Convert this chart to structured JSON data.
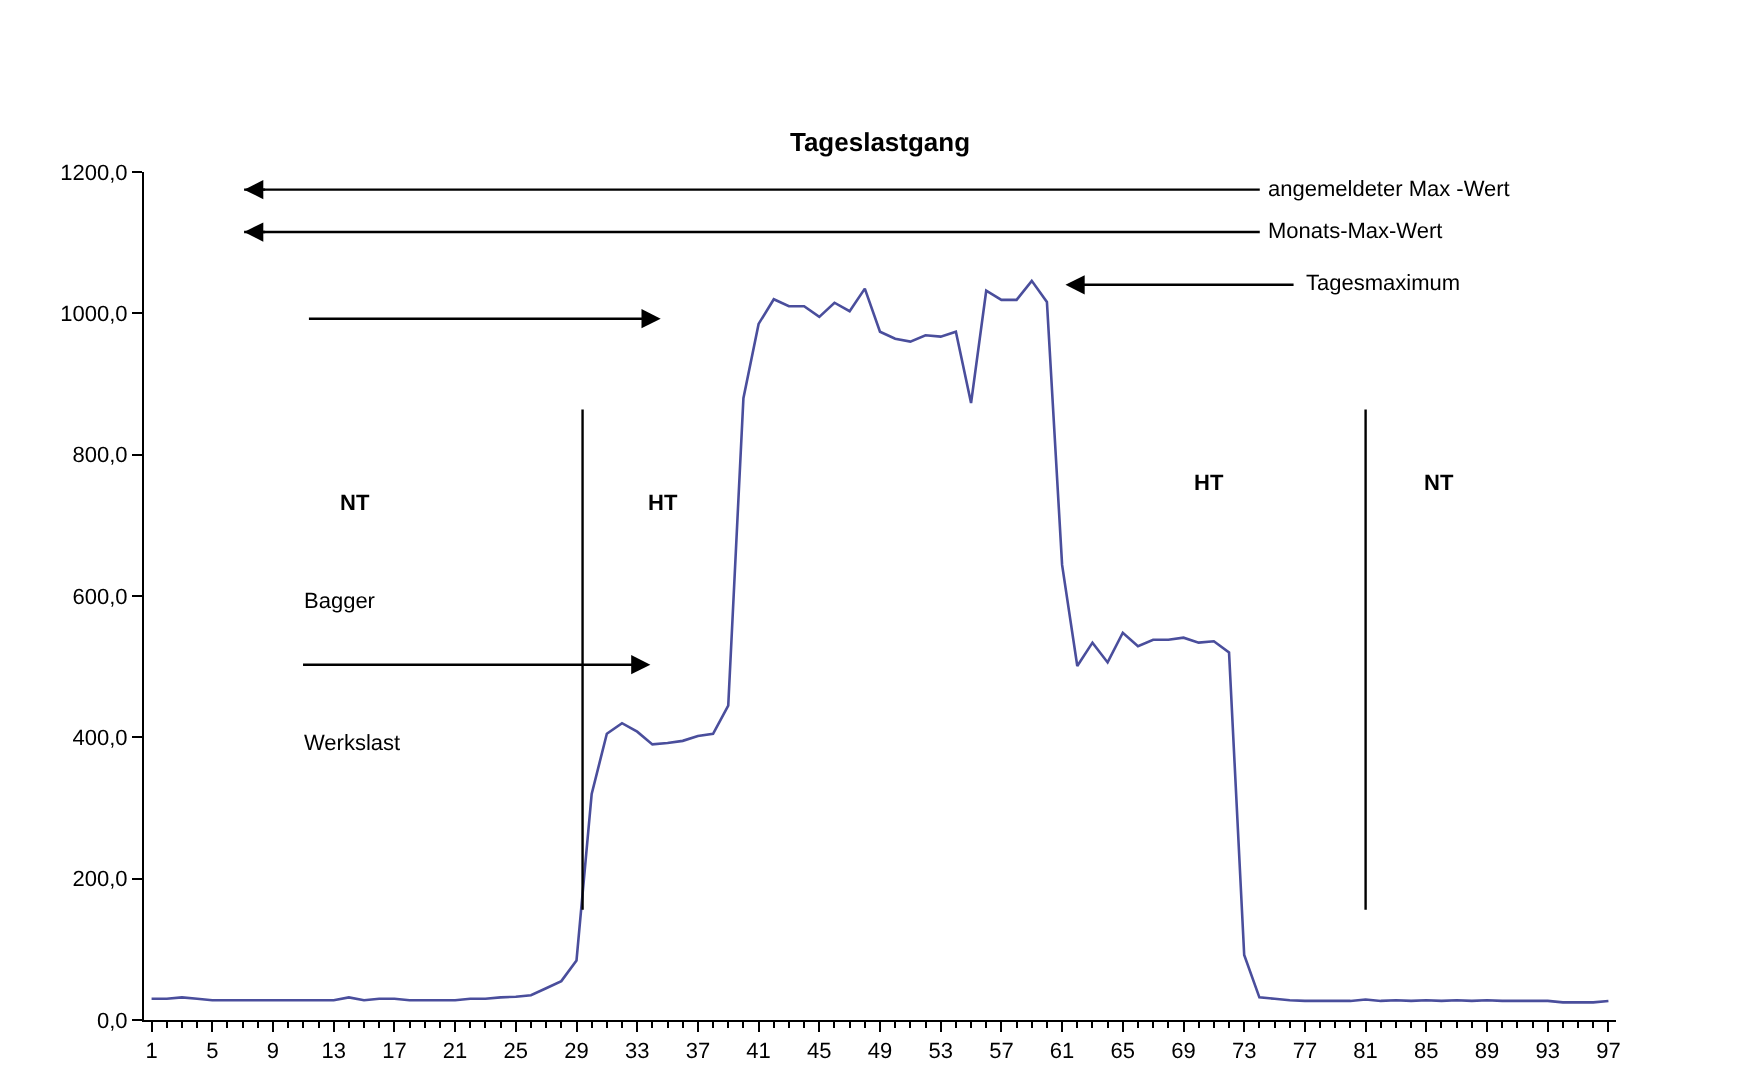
{
  "chart_data": {
    "type": "line",
    "title": "Tageslastgang",
    "x": [
      1,
      2,
      3,
      4,
      5,
      6,
      7,
      8,
      9,
      10,
      11,
      12,
      13,
      14,
      15,
      16,
      17,
      18,
      19,
      20,
      21,
      22,
      23,
      24,
      25,
      26,
      27,
      28,
      29,
      30,
      31,
      32,
      33,
      34,
      35,
      36,
      37,
      38,
      39,
      40,
      41,
      42,
      43,
      44,
      45,
      46,
      47,
      48,
      49,
      50,
      51,
      52,
      53,
      54,
      55,
      56,
      57,
      58,
      59,
      60,
      61,
      62,
      63,
      64,
      65,
      66,
      67,
      68,
      69,
      70,
      71,
      72,
      73,
      74,
      75,
      76,
      77,
      78,
      79,
      80,
      81,
      82,
      83,
      84,
      85,
      86,
      87,
      88,
      89,
      90,
      91,
      92,
      93,
      94,
      95,
      96,
      97
    ],
    "series": [
      {
        "color": "#4a4e9c",
        "values": [
          30,
          30,
          32,
          30,
          28,
          28,
          28,
          28,
          28,
          28,
          28,
          28,
          28,
          32,
          28,
          30,
          30,
          28,
          28,
          28,
          28,
          30,
          30,
          32,
          33,
          35,
          45,
          55,
          84,
          320,
          405,
          420,
          408,
          390,
          392,
          395,
          402,
          405,
          445,
          880,
          985,
          1020,
          1010,
          1010,
          995,
          1015,
          1003,
          1035,
          974,
          964,
          960,
          969,
          967,
          974,
          873,
          1032,
          1019,
          1019,
          1046,
          1016,
          644,
          501,
          534,
          506,
          548,
          529,
          538,
          538,
          541,
          534,
          536,
          520,
          92,
          32,
          30,
          28,
          27,
          27,
          27,
          27,
          29,
          27,
          28,
          27,
          28,
          27,
          28,
          27,
          28,
          27,
          27,
          27,
          27,
          25,
          25,
          25,
          27
        ]
      }
    ],
    "xlim": [
      0.5,
      97.5
    ],
    "xticks": [
      1,
      5,
      9,
      13,
      17,
      21,
      25,
      29,
      33,
      37,
      41,
      45,
      49,
      53,
      57,
      61,
      65,
      69,
      73,
      77,
      81,
      85,
      89,
      93,
      97
    ],
    "ylim": [
      0,
      1200
    ],
    "yticks": [
      {
        "value": 0,
        "label": "0,0"
      },
      {
        "value": 200,
        "label": "200,0"
      },
      {
        "value": 400,
        "label": "400,0"
      },
      {
        "value": 600,
        "label": "600,0"
      },
      {
        "value": 800,
        "label": "800,0"
      },
      {
        "value": 1000,
        "label": "1000,0"
      },
      {
        "value": 1200,
        "label": "1200,0"
      }
    ],
    "marker": "none",
    "line_style": "solid",
    "ref_lines": [
      {
        "axis": "x",
        "value": 29.4,
        "color": "#000000"
      },
      {
        "axis": "x",
        "value": 81,
        "color": "#000000"
      },
      {
        "axis": "y",
        "value": 1175,
        "label": "angemeldeter Max -Wert",
        "color": "#000000"
      },
      {
        "axis": "y",
        "value": 1115,
        "label": "Monats-Max-Wert",
        "color": "#000000"
      }
    ],
    "annotations": [
      "Tagesmaximum",
      "NT",
      "HT",
      "HT",
      "NT",
      "Bagger",
      "Werkslast"
    ]
  }
}
